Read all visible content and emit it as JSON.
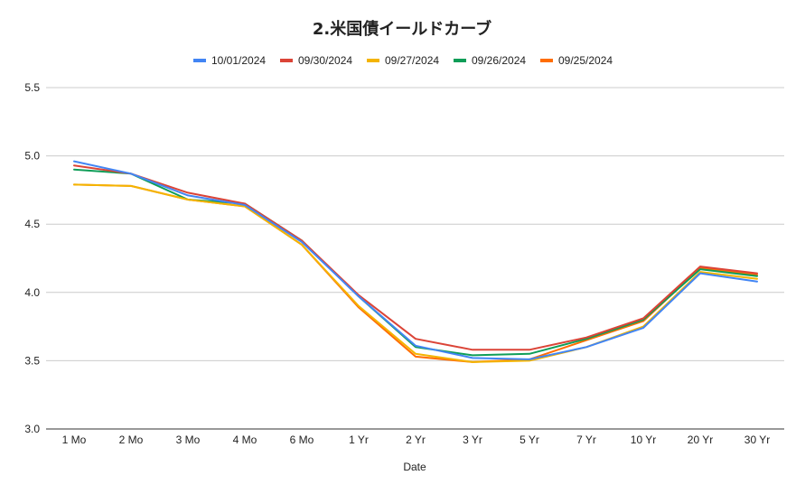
{
  "chart_data": {
    "type": "line",
    "title": "2.米国債イールドカーブ",
    "xlabel": "Date",
    "ylabel": "",
    "ylim": [
      3.0,
      5.5
    ],
    "yticks": [
      3.0,
      3.5,
      4.0,
      4.5,
      5.0,
      5.5
    ],
    "ytick_labels": [
      "3.0",
      "3.5",
      "4.0",
      "4.5",
      "5.0",
      "5.5"
    ],
    "grid": true,
    "legend_position": "top",
    "categories": [
      "1 Mo",
      "2 Mo",
      "3 Mo",
      "4 Mo",
      "6 Mo",
      "1 Yr",
      "2 Yr",
      "3 Yr",
      "5 Yr",
      "7 Yr",
      "10 Yr",
      "20 Yr",
      "30 Yr"
    ],
    "series": [
      {
        "name": "10/01/2024",
        "color": "#4285f4",
        "values": [
          4.96,
          4.87,
          4.71,
          4.64,
          4.37,
          3.97,
          3.61,
          3.52,
          3.51,
          3.6,
          3.74,
          4.14,
          4.08
        ]
      },
      {
        "name": "09/30/2024",
        "color": "#db4437",
        "values": [
          4.93,
          4.87,
          4.73,
          4.65,
          4.38,
          3.98,
          3.66,
          3.58,
          3.58,
          3.67,
          3.81,
          4.19,
          4.14
        ]
      },
      {
        "name": "09/27/2024",
        "color": "#f4b400",
        "values": [
          4.79,
          4.78,
          4.68,
          4.63,
          4.35,
          3.9,
          3.55,
          3.49,
          3.5,
          3.6,
          3.75,
          4.15,
          4.1
        ]
      },
      {
        "name": "09/26/2024",
        "color": "#0f9d58",
        "values": [
          4.9,
          4.87,
          4.68,
          4.65,
          4.38,
          3.97,
          3.6,
          3.54,
          3.55,
          3.66,
          3.8,
          4.17,
          4.12
        ]
      },
      {
        "name": "09/25/2024",
        "color": "#ff6d01",
        "values": [
          4.79,
          4.78,
          4.68,
          4.63,
          4.35,
          3.89,
          3.53,
          3.49,
          3.51,
          3.65,
          3.79,
          4.18,
          4.13
        ]
      }
    ]
  }
}
